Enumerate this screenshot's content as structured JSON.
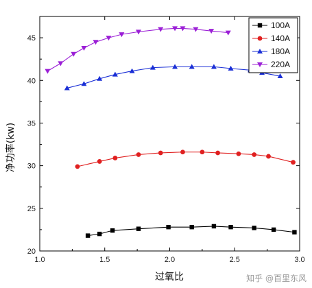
{
  "chart_data": {
    "type": "line",
    "xlabel": "过氧比",
    "ylabel": "净功率(kw)",
    "xlim": [
      1.0,
      3.0
    ],
    "ylim": [
      20,
      47.5
    ],
    "xticks": [
      1.0,
      1.5,
      2.0,
      2.5,
      3.0
    ],
    "xtick_labels": [
      "1.0",
      "1.5",
      "2.0",
      "2.5",
      "3.0"
    ],
    "yticks": [
      20,
      25,
      30,
      35,
      40,
      45
    ],
    "ytick_labels": [
      "20",
      "25",
      "30",
      "35",
      "40",
      "45"
    ],
    "grid": false,
    "legend_position": "top-right",
    "series": [
      {
        "name": "100A",
        "color": "#000000",
        "marker": "square",
        "x": [
          1.37,
          1.46,
          1.56,
          1.76,
          1.99,
          2.17,
          2.34,
          2.47,
          2.65,
          2.8,
          2.96
        ],
        "y": [
          21.8,
          22.0,
          22.4,
          22.6,
          22.8,
          22.8,
          22.9,
          22.8,
          22.7,
          22.5,
          22.2
        ]
      },
      {
        "name": "140A",
        "color": "#e02020",
        "marker": "circle",
        "x": [
          1.29,
          1.46,
          1.58,
          1.76,
          1.93,
          2.1,
          2.25,
          2.37,
          2.53,
          2.65,
          2.76,
          2.95
        ],
        "y": [
          29.9,
          30.5,
          30.9,
          31.3,
          31.5,
          31.6,
          31.6,
          31.5,
          31.4,
          31.3,
          31.1,
          30.4
        ]
      },
      {
        "name": "180A",
        "color": "#1a2fd6",
        "marker": "triangle-up",
        "x": [
          1.21,
          1.34,
          1.46,
          1.58,
          1.71,
          1.87,
          2.04,
          2.17,
          2.34,
          2.47,
          2.62,
          2.71,
          2.85
        ],
        "y": [
          39.1,
          39.6,
          40.2,
          40.7,
          41.1,
          41.5,
          41.6,
          41.6,
          41.6,
          41.4,
          41.2,
          40.9,
          40.5
        ]
      },
      {
        "name": "220A",
        "color": "#9b1fd6",
        "marker": "triangle-down",
        "x": [
          1.06,
          1.16,
          1.26,
          1.34,
          1.43,
          1.53,
          1.63,
          1.76,
          1.93,
          2.04,
          2.1,
          2.2,
          2.32,
          2.45
        ],
        "y": [
          41.1,
          42.0,
          43.1,
          43.8,
          44.5,
          45.0,
          45.4,
          45.7,
          46.0,
          46.1,
          46.1,
          46.0,
          45.8,
          45.6
        ]
      }
    ]
  },
  "watermark": "知乎 @百里东风"
}
